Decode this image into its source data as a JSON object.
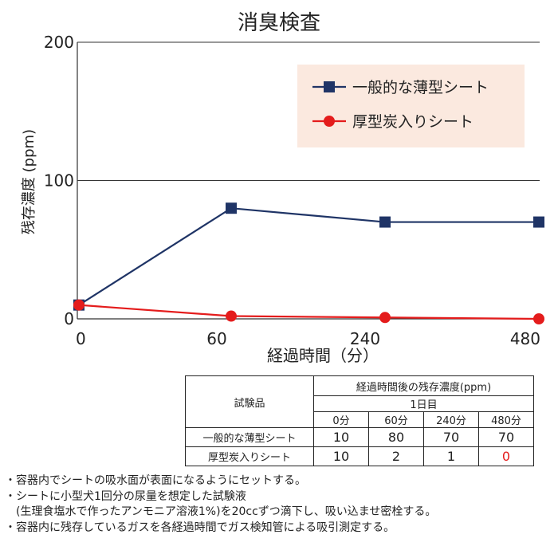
{
  "chart_data": {
    "type": "line",
    "title": "消臭検査",
    "xlabel": "経過時間（分）",
    "ylabel": "残存濃度 (ppm)",
    "categories": [
      "0",
      "60",
      "240",
      "480"
    ],
    "yticks": [
      "0",
      "100",
      "200"
    ],
    "ylim": [
      0,
      200
    ],
    "grid": "horizontal",
    "legend_position": "top-right",
    "series": [
      {
        "name": "一般的な薄型シート",
        "values": [
          10,
          80,
          70,
          70
        ],
        "color": "#1f3466",
        "marker": "square"
      },
      {
        "name": "厚型炭入りシート",
        "values": [
          10,
          2,
          1,
          0
        ],
        "color": "#e41c1c",
        "marker": "circle"
      }
    ]
  },
  "table": {
    "corner_label": "試験品",
    "group_header": "経過時間後の残存濃度(ppm)",
    "day_header": "1日目",
    "columns": [
      "0分",
      "60分",
      "240分",
      "480分"
    ],
    "rows": [
      {
        "label": "一般的な薄型シート",
        "values": [
          "10",
          "80",
          "70",
          "70"
        ],
        "highlight": [
          false,
          false,
          false,
          false
        ]
      },
      {
        "label": "厚型炭入りシート",
        "values": [
          "10",
          "2",
          "1",
          "0"
        ],
        "highlight": [
          false,
          false,
          false,
          true
        ]
      }
    ],
    "highlight_color": "#e41c1c"
  },
  "notes": [
    "・容器内でシートの吸水面が表面になるようにセットする。",
    "・シートに小型犬1回分の尿量を想定した試験液",
    "　(生理食塩水で作ったアンモニア溶液1%)を20ccずつ滴下し、吸い込ませ密栓する。",
    "・容器内に残存しているガスを各経過時間でガス検知管による吸引測定する。"
  ]
}
